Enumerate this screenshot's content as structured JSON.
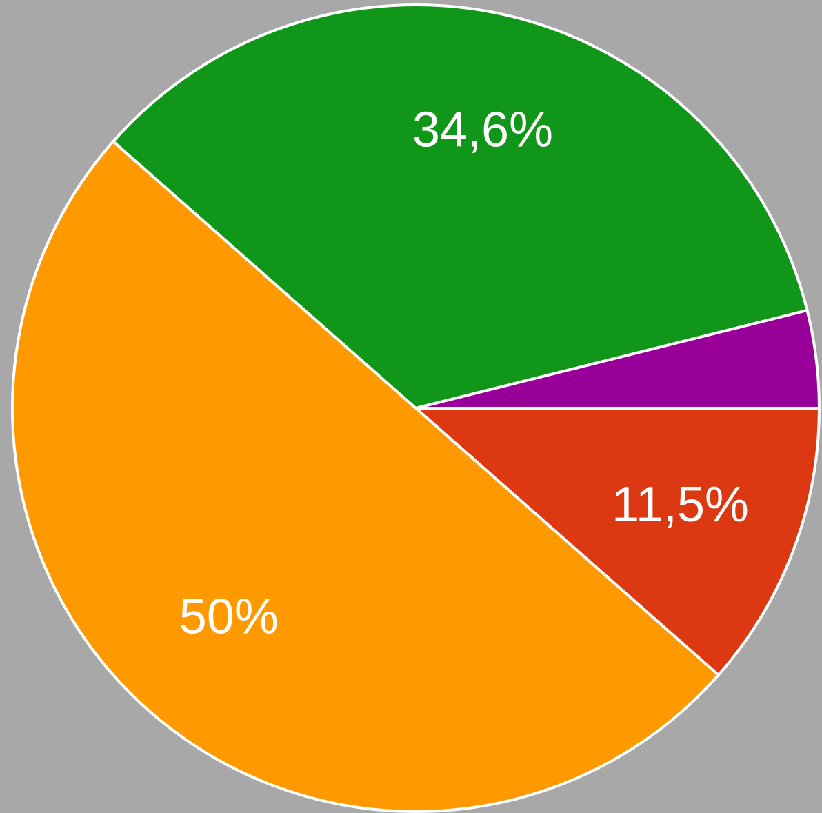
{
  "chart_data": {
    "type": "pie",
    "values": [
      11.5,
      50,
      34.6,
      3.9
    ],
    "value_labels": [
      "11,5%",
      "50%",
      "34,6%",
      null
    ],
    "colors": [
      "#dc3912",
      "#ff9900",
      "#109618",
      "#990099"
    ]
  }
}
